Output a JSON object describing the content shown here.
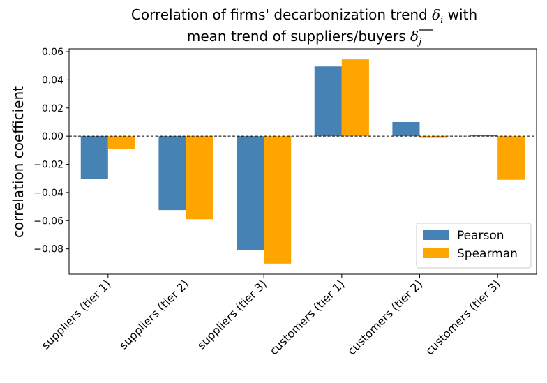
{
  "chart_data": {
    "type": "bar",
    "title_line1": "Correlation of firms' decarbonization trend ",
    "title_line1_symbol": "δ",
    "title_line1_subscript": "i",
    "title_line1_suffix": " with",
    "title_line2": "mean trend of suppliers/buyers ",
    "title_line2_symbol": "δ",
    "title_line2_subscript": "j",
    "xlabel": "",
    "ylabel": "correlation coefficient",
    "categories": [
      "suppliers (tier 1)",
      "suppliers (tier 2)",
      "suppliers (tier 3)",
      "customers (tier 1)",
      "customers (tier 2)",
      "customers (tier 3)"
    ],
    "series": [
      {
        "name": "Pearson",
        "color": "#4682b4",
        "values": [
          -0.0305,
          -0.0525,
          -0.081,
          0.0495,
          0.01,
          0.001
        ]
      },
      {
        "name": "Spearman",
        "color": "#ffa500",
        "values": [
          -0.0092,
          -0.059,
          -0.0905,
          0.0545,
          -0.0012,
          -0.031
        ]
      }
    ],
    "ylim": [
      -0.098,
      0.062
    ],
    "yticks": [
      0.06,
      0.04,
      0.02,
      0.0,
      -0.02,
      -0.04,
      -0.06,
      -0.08
    ],
    "ytick_labels": [
      "0.06",
      "0.04",
      "0.02",
      "0.00",
      "−0.02",
      "−0.04",
      "−0.06",
      "−0.08"
    ],
    "zero_line": "dashed",
    "legend_position": "bottom-right",
    "grid": false
  }
}
